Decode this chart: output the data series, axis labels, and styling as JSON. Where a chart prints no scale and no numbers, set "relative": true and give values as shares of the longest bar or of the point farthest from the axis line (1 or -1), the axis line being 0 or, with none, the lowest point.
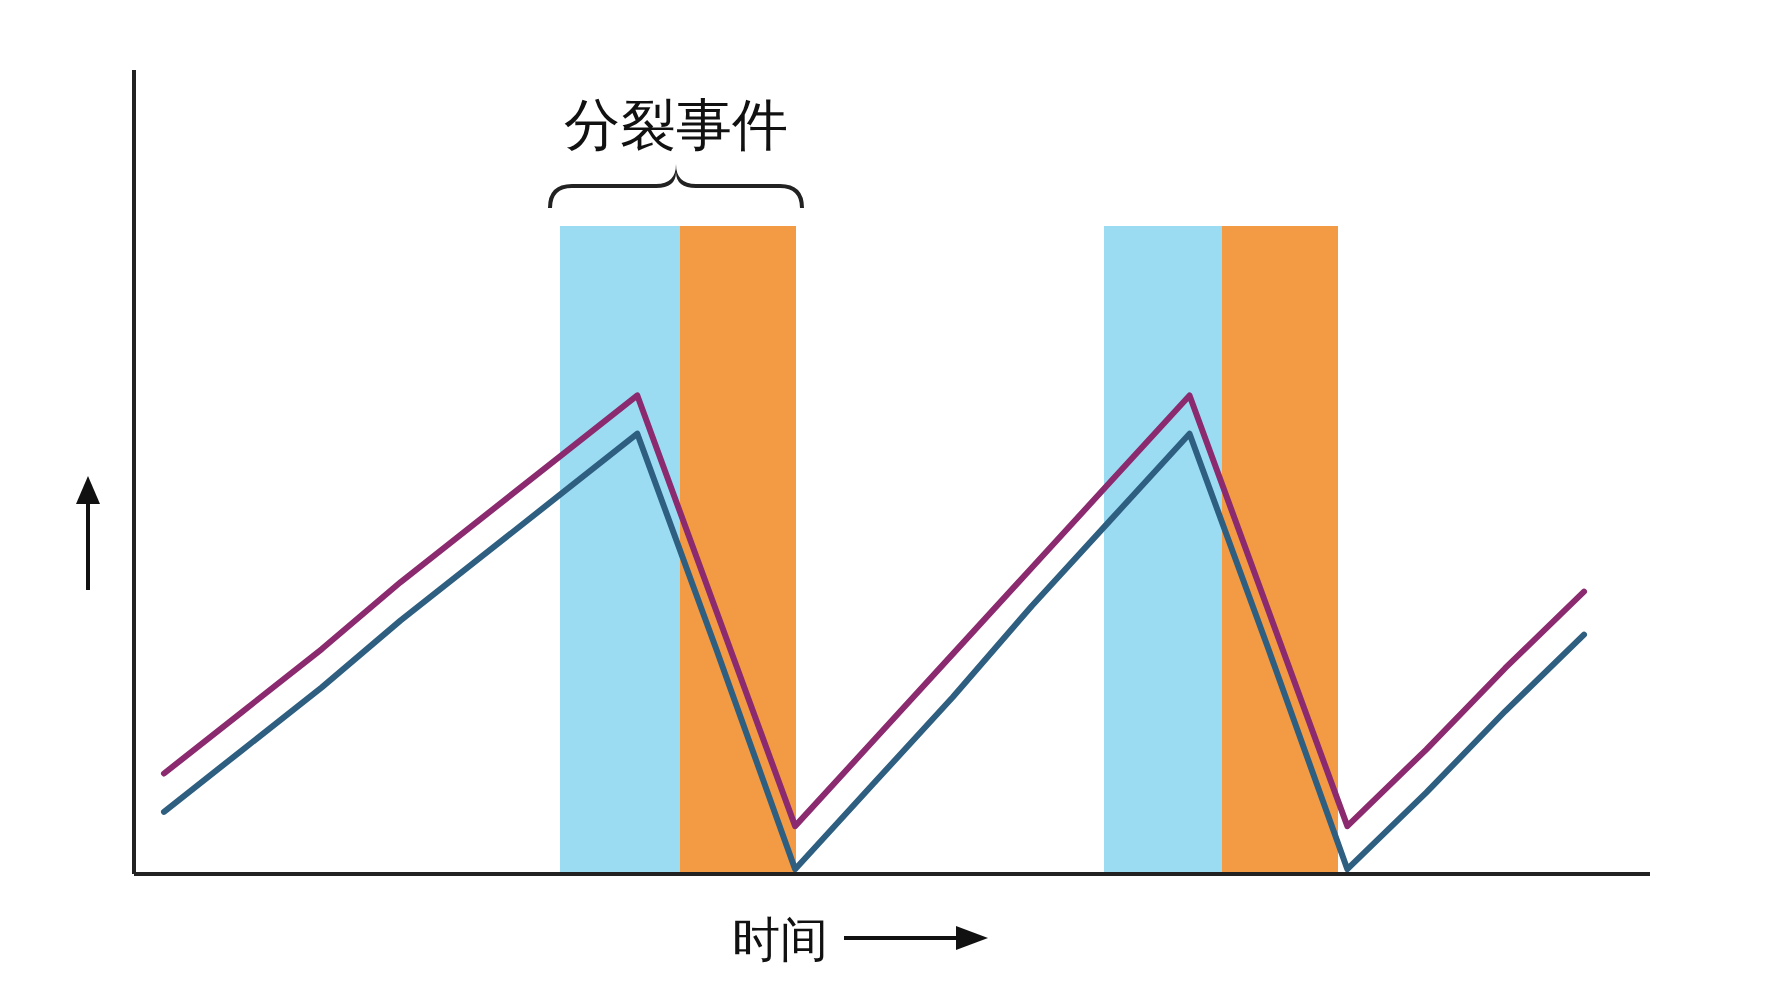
{
  "chart_data": {
    "type": "line",
    "relative": true,
    "xlabel": "时间",
    "categories": [
      null,
      null,
      null,
      null,
      null,
      null,
      null,
      null,
      null,
      null,
      null,
      null,
      null,
      null,
      null,
      null,
      null,
      null,
      null
    ],
    "annotations": [
      "分裂事件"
    ],
    "series": [
      {
        "color": "#8b2a6e",
        "values": [
          0.21,
          0.34,
          0.47,
          0.61,
          0.74,
          0.87,
          1.0,
          0.55,
          0.1,
          0.28,
          0.46,
          0.64,
          0.82,
          1.0,
          0.55,
          0.1,
          0.26,
          0.43,
          0.59
        ]
      },
      {
        "color": "#2e5f80",
        "values": [
          0.13,
          0.26,
          0.39,
          0.53,
          0.66,
          0.79,
          0.92,
          0.47,
          0.01,
          0.19,
          0.37,
          0.56,
          0.74,
          0.92,
          0.47,
          0.01,
          0.17,
          0.34,
          0.5
        ]
      }
    ]
  }
}
